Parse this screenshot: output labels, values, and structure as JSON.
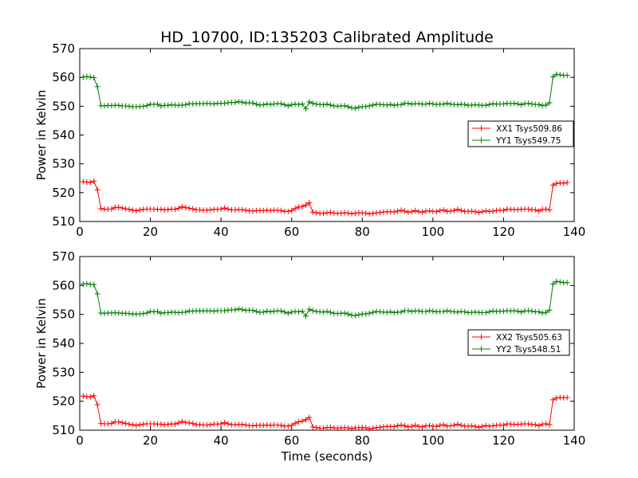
{
  "figure": {
    "title": "HD_10700, ID:135203 Calibrated Amplitude",
    "xlabel": "Time (seconds)"
  },
  "colors": {
    "red": "#ff0000",
    "green": "#008000"
  },
  "chart_data": [
    {
      "type": "line",
      "title": "HD_10700, ID:135203 Calibrated Amplitude",
      "xlabel": "",
      "ylabel": "Power in Kelvin",
      "xlim": [
        0,
        140
      ],
      "ylim": [
        510,
        570
      ],
      "xticks": [
        0,
        20,
        40,
        60,
        80,
        100,
        120,
        140
      ],
      "yticks": [
        510,
        520,
        530,
        540,
        550,
        560,
        570
      ],
      "grid": false,
      "legend_position": "right",
      "x": [
        1,
        2,
        3,
        4,
        5,
        6,
        7,
        8,
        9,
        10,
        11,
        12,
        13,
        14,
        15,
        16,
        17,
        18,
        19,
        20,
        21,
        22,
        23,
        24,
        25,
        26,
        27,
        28,
        29,
        30,
        31,
        32,
        33,
        34,
        35,
        36,
        37,
        38,
        39,
        40,
        41,
        42,
        43,
        44,
        45,
        46,
        47,
        48,
        49,
        50,
        51,
        52,
        53,
        54,
        55,
        56,
        57,
        58,
        59,
        60,
        61,
        62,
        63,
        64,
        65,
        66,
        67,
        68,
        69,
        70,
        71,
        72,
        73,
        74,
        75,
        76,
        77,
        78,
        79,
        80,
        81,
        82,
        83,
        84,
        85,
        86,
        87,
        88,
        89,
        90,
        91,
        92,
        93,
        94,
        95,
        96,
        97,
        98,
        99,
        100,
        101,
        102,
        103,
        104,
        105,
        106,
        107,
        108,
        109,
        110,
        111,
        112,
        113,
        114,
        115,
        116,
        117,
        118,
        119,
        120,
        121,
        122,
        123,
        124,
        125,
        126,
        127,
        128,
        129,
        130,
        131,
        132,
        133,
        134,
        135,
        136,
        137,
        138
      ],
      "series": [
        {
          "name": "XX1 Tsys509.86",
          "color": "#ff0000",
          "values": [
            523.8,
            523.7,
            523.6,
            524.0,
            521.0,
            514.5,
            514.2,
            514.3,
            514.3,
            514.9,
            514.9,
            514.7,
            514.4,
            514.2,
            513.9,
            513.7,
            514.0,
            514.2,
            514.3,
            514.3,
            514.3,
            514.2,
            514.2,
            514.0,
            514.1,
            514.3,
            514.2,
            514.6,
            515.1,
            514.8,
            514.6,
            514.4,
            514.0,
            514.0,
            513.9,
            513.9,
            514.0,
            514.2,
            514.2,
            514.3,
            514.7,
            514.3,
            514.0,
            514.0,
            514.1,
            514.1,
            513.9,
            513.7,
            513.6,
            513.8,
            513.8,
            513.8,
            513.9,
            513.8,
            513.9,
            513.9,
            513.8,
            513.5,
            513.5,
            513.8,
            514.5,
            515.0,
            515.2,
            515.7,
            516.5,
            513.2,
            513.0,
            512.8,
            512.8,
            513.0,
            513.1,
            512.9,
            512.8,
            512.9,
            513.0,
            512.9,
            512.7,
            512.9,
            513.0,
            513.0,
            512.9,
            512.6,
            512.8,
            513.0,
            513.1,
            513.3,
            513.4,
            513.4,
            513.3,
            513.6,
            513.9,
            513.6,
            513.2,
            513.4,
            513.8,
            513.4,
            513.2,
            513.6,
            513.7,
            513.5,
            513.4,
            513.8,
            514.0,
            513.5,
            513.6,
            513.8,
            514.2,
            513.8,
            513.5,
            513.5,
            513.6,
            513.4,
            513.1,
            513.4,
            513.7,
            513.5,
            513.6,
            513.8,
            513.9,
            513.8,
            514.3,
            514.2,
            514.1,
            514.1,
            514.2,
            514.3,
            514.3,
            514.1,
            514.0,
            513.6,
            514.2,
            514.3,
            514.0,
            522.6,
            523.2,
            523.4,
            523.3,
            523.5
          ]
        },
        {
          "name": "YY1 Tsys549.75",
          "color": "#008000",
          "values": [
            560.1,
            560.3,
            560.1,
            559.9,
            556.8,
            550.2,
            550.1,
            550.3,
            550.2,
            550.3,
            550.3,
            550.1,
            550.1,
            550.0,
            549.8,
            549.8,
            549.9,
            550.0,
            550.2,
            550.7,
            550.6,
            550.7,
            550.1,
            550.3,
            550.3,
            550.5,
            550.4,
            550.3,
            550.4,
            550.5,
            550.9,
            550.8,
            550.9,
            550.9,
            550.9,
            551.0,
            550.9,
            550.8,
            551.0,
            551.0,
            551.0,
            551.2,
            551.3,
            551.3,
            551.6,
            551.4,
            551.1,
            551.2,
            551.1,
            550.7,
            550.4,
            550.5,
            550.8,
            550.6,
            550.8,
            550.9,
            550.9,
            550.5,
            550.1,
            550.5,
            550.7,
            550.6,
            550.8,
            549.1,
            551.5,
            551.0,
            550.7,
            550.6,
            550.5,
            550.7,
            550.4,
            550.1,
            550.0,
            550.1,
            550.2,
            549.8,
            549.4,
            549.3,
            549.6,
            549.8,
            549.9,
            550.1,
            550.4,
            550.7,
            550.6,
            550.5,
            550.4,
            550.6,
            550.3,
            550.5,
            550.5,
            551.0,
            551.0,
            550.7,
            550.9,
            550.9,
            550.7,
            550.7,
            551.0,
            550.8,
            550.6,
            550.7,
            550.7,
            551.0,
            550.7,
            550.6,
            550.5,
            550.7,
            550.6,
            550.3,
            550.4,
            550.5,
            550.4,
            550.3,
            550.3,
            550.6,
            550.9,
            550.7,
            550.8,
            550.8,
            551.0,
            550.9,
            551.0,
            550.8,
            550.5,
            550.9,
            551.0,
            550.8,
            550.6,
            550.6,
            550.2,
            550.4,
            551.2,
            560.2,
            561.1,
            560.9,
            560.7,
            560.7
          ]
        }
      ]
    },
    {
      "type": "line",
      "title": "",
      "xlabel": "Time (seconds)",
      "ylabel": "Power in Kelvin",
      "xlim": [
        0,
        140
      ],
      "ylim": [
        510,
        570
      ],
      "xticks": [
        0,
        20,
        40,
        60,
        80,
        100,
        120,
        140
      ],
      "yticks": [
        510,
        520,
        530,
        540,
        550,
        560,
        570
      ],
      "grid": false,
      "legend_position": "right",
      "x": [
        1,
        2,
        3,
        4,
        5,
        6,
        7,
        8,
        9,
        10,
        11,
        12,
        13,
        14,
        15,
        16,
        17,
        18,
        19,
        20,
        21,
        22,
        23,
        24,
        25,
        26,
        27,
        28,
        29,
        30,
        31,
        32,
        33,
        34,
        35,
        36,
        37,
        38,
        39,
        40,
        41,
        42,
        43,
        44,
        45,
        46,
        47,
        48,
        49,
        50,
        51,
        52,
        53,
        54,
        55,
        56,
        57,
        58,
        59,
        60,
        61,
        62,
        63,
        64,
        65,
        66,
        67,
        68,
        69,
        70,
        71,
        72,
        73,
        74,
        75,
        76,
        77,
        78,
        79,
        80,
        81,
        82,
        83,
        84,
        85,
        86,
        87,
        88,
        89,
        90,
        91,
        92,
        93,
        94,
        95,
        96,
        97,
        98,
        99,
        100,
        101,
        102,
        103,
        104,
        105,
        106,
        107,
        108,
        109,
        110,
        111,
        112,
        113,
        114,
        115,
        116,
        117,
        118,
        119,
        120,
        121,
        122,
        123,
        124,
        125,
        126,
        127,
        128,
        129,
        130,
        131,
        132,
        133,
        134,
        135,
        136,
        137,
        138
      ],
      "series": [
        {
          "name": "XX2 Tsys505.63",
          "color": "#ff0000",
          "values": [
            521.8,
            521.6,
            521.5,
            521.9,
            518.8,
            512.3,
            512.2,
            512.2,
            512.3,
            512.9,
            512.9,
            512.6,
            512.3,
            512.1,
            511.9,
            511.6,
            511.9,
            512.1,
            512.2,
            512.2,
            512.2,
            512.1,
            512.1,
            511.9,
            512.0,
            512.2,
            512.1,
            512.5,
            513.0,
            512.7,
            512.5,
            512.3,
            511.9,
            511.9,
            511.8,
            511.8,
            511.9,
            512.1,
            512.1,
            512.2,
            512.6,
            512.2,
            511.9,
            511.9,
            512.0,
            512.0,
            511.8,
            511.6,
            511.5,
            511.7,
            511.7,
            511.7,
            511.8,
            511.7,
            511.8,
            511.8,
            511.7,
            511.4,
            511.4,
            511.7,
            512.4,
            512.9,
            513.1,
            513.6,
            514.4,
            511.1,
            510.9,
            510.7,
            510.7,
            510.9,
            511.0,
            510.8,
            510.7,
            510.8,
            510.9,
            510.8,
            510.6,
            510.8,
            510.9,
            510.9,
            510.8,
            510.5,
            510.7,
            510.9,
            511.0,
            511.2,
            511.3,
            511.3,
            511.2,
            511.5,
            511.8,
            511.5,
            511.1,
            511.3,
            511.7,
            511.3,
            511.1,
            511.5,
            511.6,
            511.4,
            511.3,
            511.7,
            511.9,
            511.4,
            511.5,
            511.7,
            512.1,
            511.7,
            511.4,
            511.4,
            511.5,
            511.3,
            511.0,
            511.3,
            511.6,
            511.4,
            511.5,
            511.7,
            511.8,
            511.7,
            512.2,
            512.1,
            512.0,
            512.0,
            512.1,
            512.2,
            512.2,
            512.0,
            511.9,
            511.5,
            512.1,
            512.2,
            511.9,
            520.5,
            521.1,
            521.3,
            521.2,
            521.3
          ]
        },
        {
          "name": "YY2 Tsys548.51",
          "color": "#008000",
          "values": [
            560.5,
            560.6,
            560.4,
            560.3,
            557.1,
            550.5,
            550.4,
            550.5,
            550.5,
            550.6,
            550.5,
            550.4,
            550.4,
            550.3,
            550.1,
            550.1,
            550.2,
            550.3,
            550.5,
            551.0,
            550.9,
            551.0,
            550.4,
            550.6,
            550.6,
            550.8,
            550.7,
            550.6,
            550.7,
            550.8,
            551.2,
            551.1,
            551.2,
            551.2,
            551.2,
            551.3,
            551.2,
            551.1,
            551.3,
            551.3,
            551.3,
            551.5,
            551.6,
            551.6,
            551.9,
            551.7,
            551.4,
            551.5,
            551.4,
            551.0,
            550.7,
            550.8,
            551.1,
            550.9,
            551.1,
            551.2,
            551.2,
            550.8,
            550.4,
            550.8,
            551.0,
            550.9,
            551.1,
            549.4,
            551.8,
            551.3,
            551.0,
            550.9,
            550.8,
            551.0,
            550.7,
            550.4,
            550.3,
            550.4,
            550.5,
            550.1,
            549.7,
            549.6,
            549.9,
            550.1,
            550.2,
            550.4,
            550.7,
            551.0,
            550.9,
            550.8,
            550.7,
            550.9,
            550.6,
            550.8,
            550.8,
            551.3,
            551.3,
            551.0,
            551.2,
            551.2,
            551.0,
            551.0,
            551.3,
            551.1,
            550.9,
            551.0,
            551.0,
            551.3,
            551.0,
            550.9,
            550.8,
            551.0,
            550.9,
            550.6,
            550.7,
            550.8,
            550.7,
            550.6,
            550.6,
            550.9,
            551.2,
            551.0,
            551.1,
            551.1,
            551.3,
            551.2,
            551.3,
            551.1,
            550.8,
            551.2,
            551.3,
            551.1,
            550.9,
            550.9,
            550.5,
            550.7,
            551.5,
            560.5,
            561.4,
            561.2,
            561.0,
            561.0
          ]
        }
      ]
    }
  ]
}
